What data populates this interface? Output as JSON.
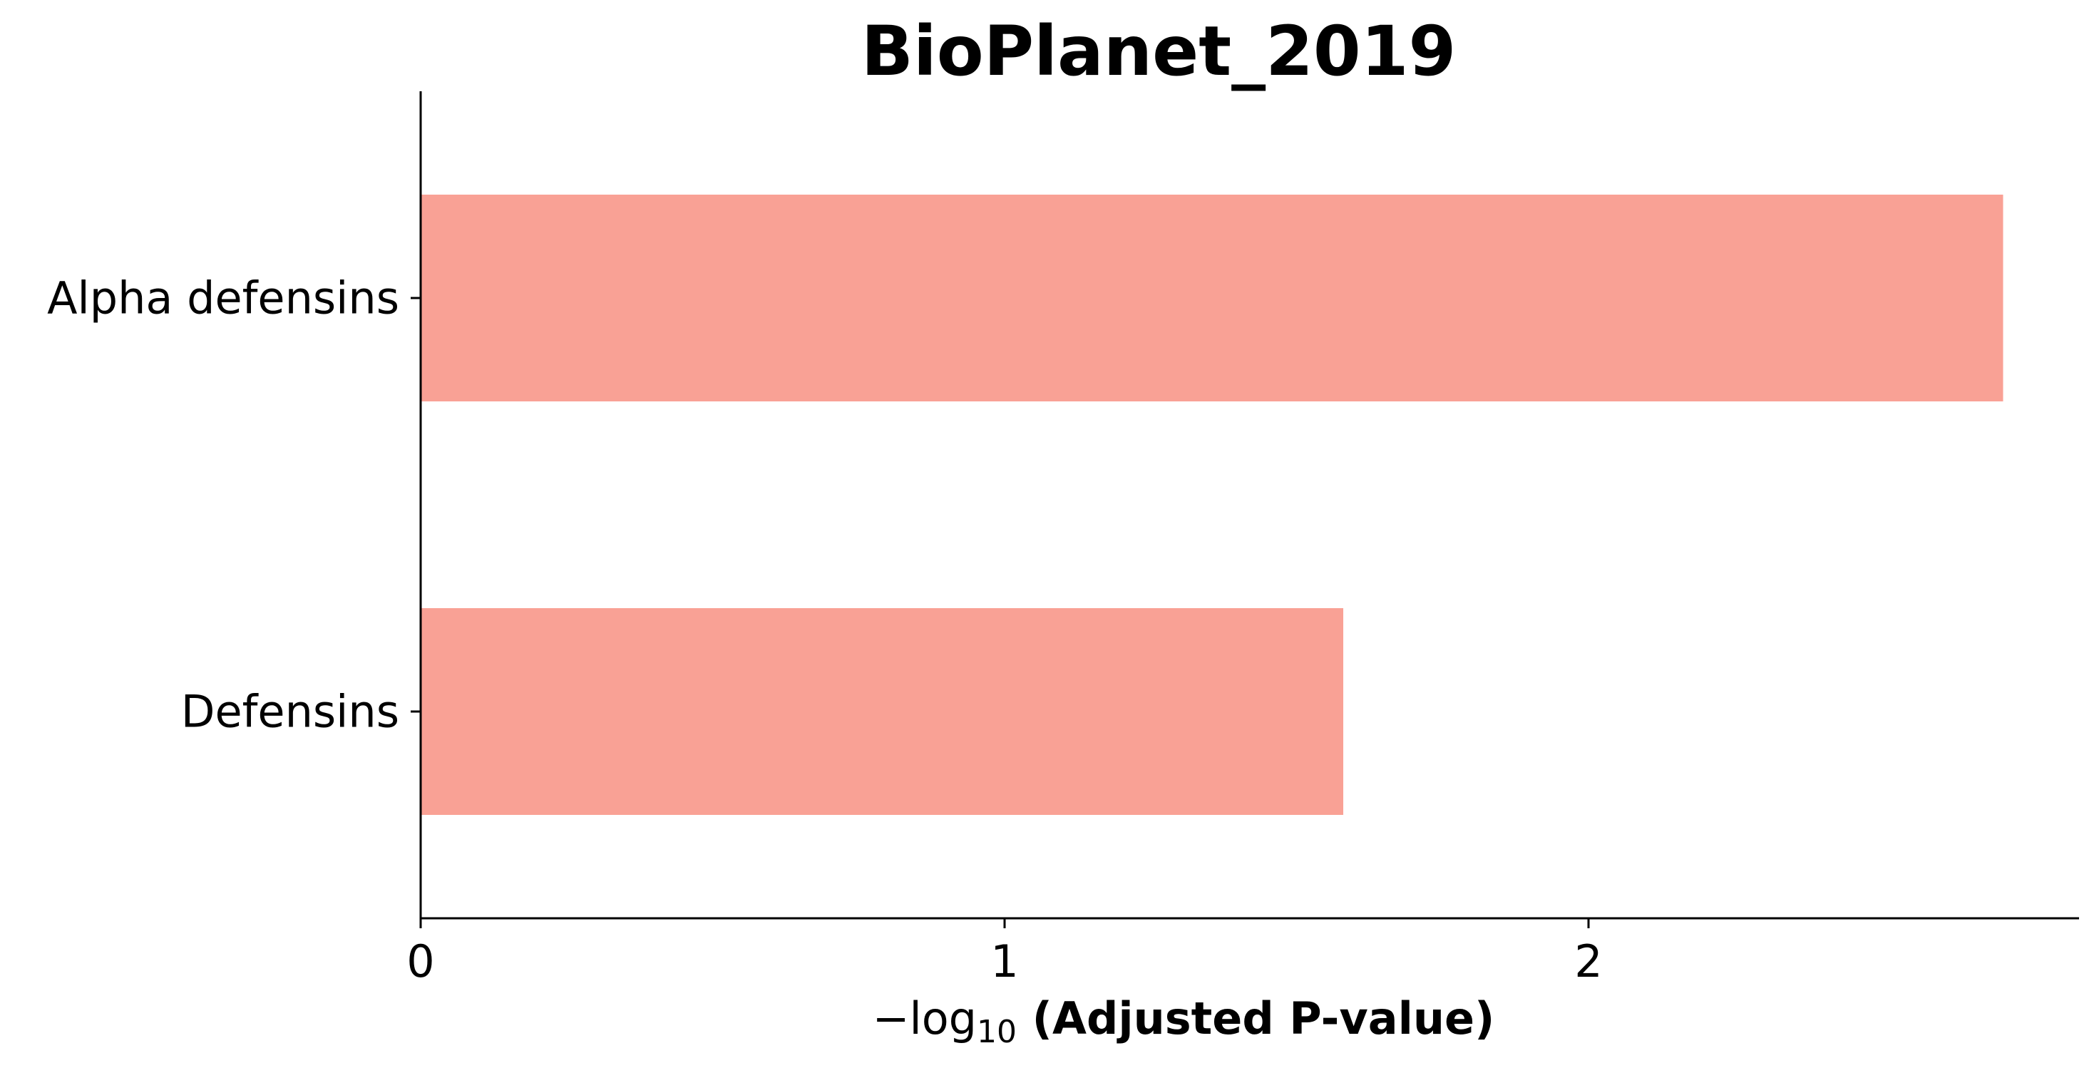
{
  "chart_data": {
    "type": "bar",
    "orientation": "horizontal",
    "title": "BioPlanet_2019",
    "categories": [
      "Alpha defensins",
      "Defensins"
    ],
    "values": [
      2.71,
      1.58
    ],
    "xlabel": {
      "prefix": "−log",
      "subscript": "10",
      "main": " (Adjusted P-value)"
    },
    "ylabel": "",
    "xlim": [
      0,
      2.85
    ],
    "xticks": [
      {
        "value": 0,
        "label": "0"
      },
      {
        "value": 1,
        "label": "1"
      },
      {
        "value": 2,
        "label": "2"
      }
    ],
    "bar_color": "#f9a195",
    "grid": false,
    "legend": "none"
  }
}
